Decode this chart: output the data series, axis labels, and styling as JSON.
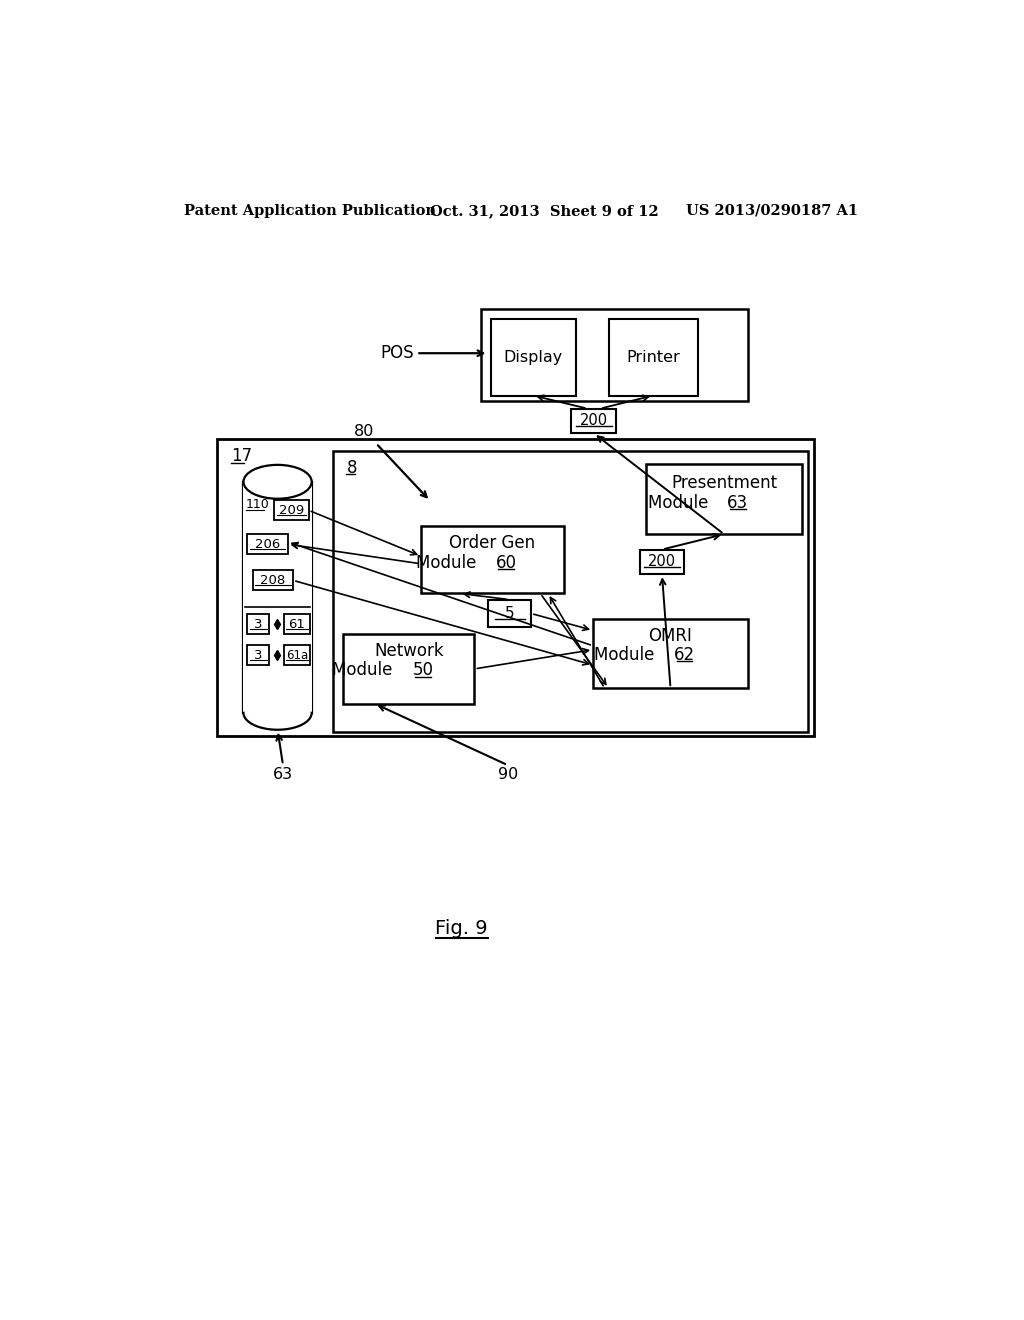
{
  "bg_color": "#ffffff",
  "header_left": "Patent Application Publication",
  "header_mid": "Oct. 31, 2013  Sheet 9 of 12",
  "header_right": "US 2013/0290187 A1",
  "fig_label": "Fig. 9"
}
